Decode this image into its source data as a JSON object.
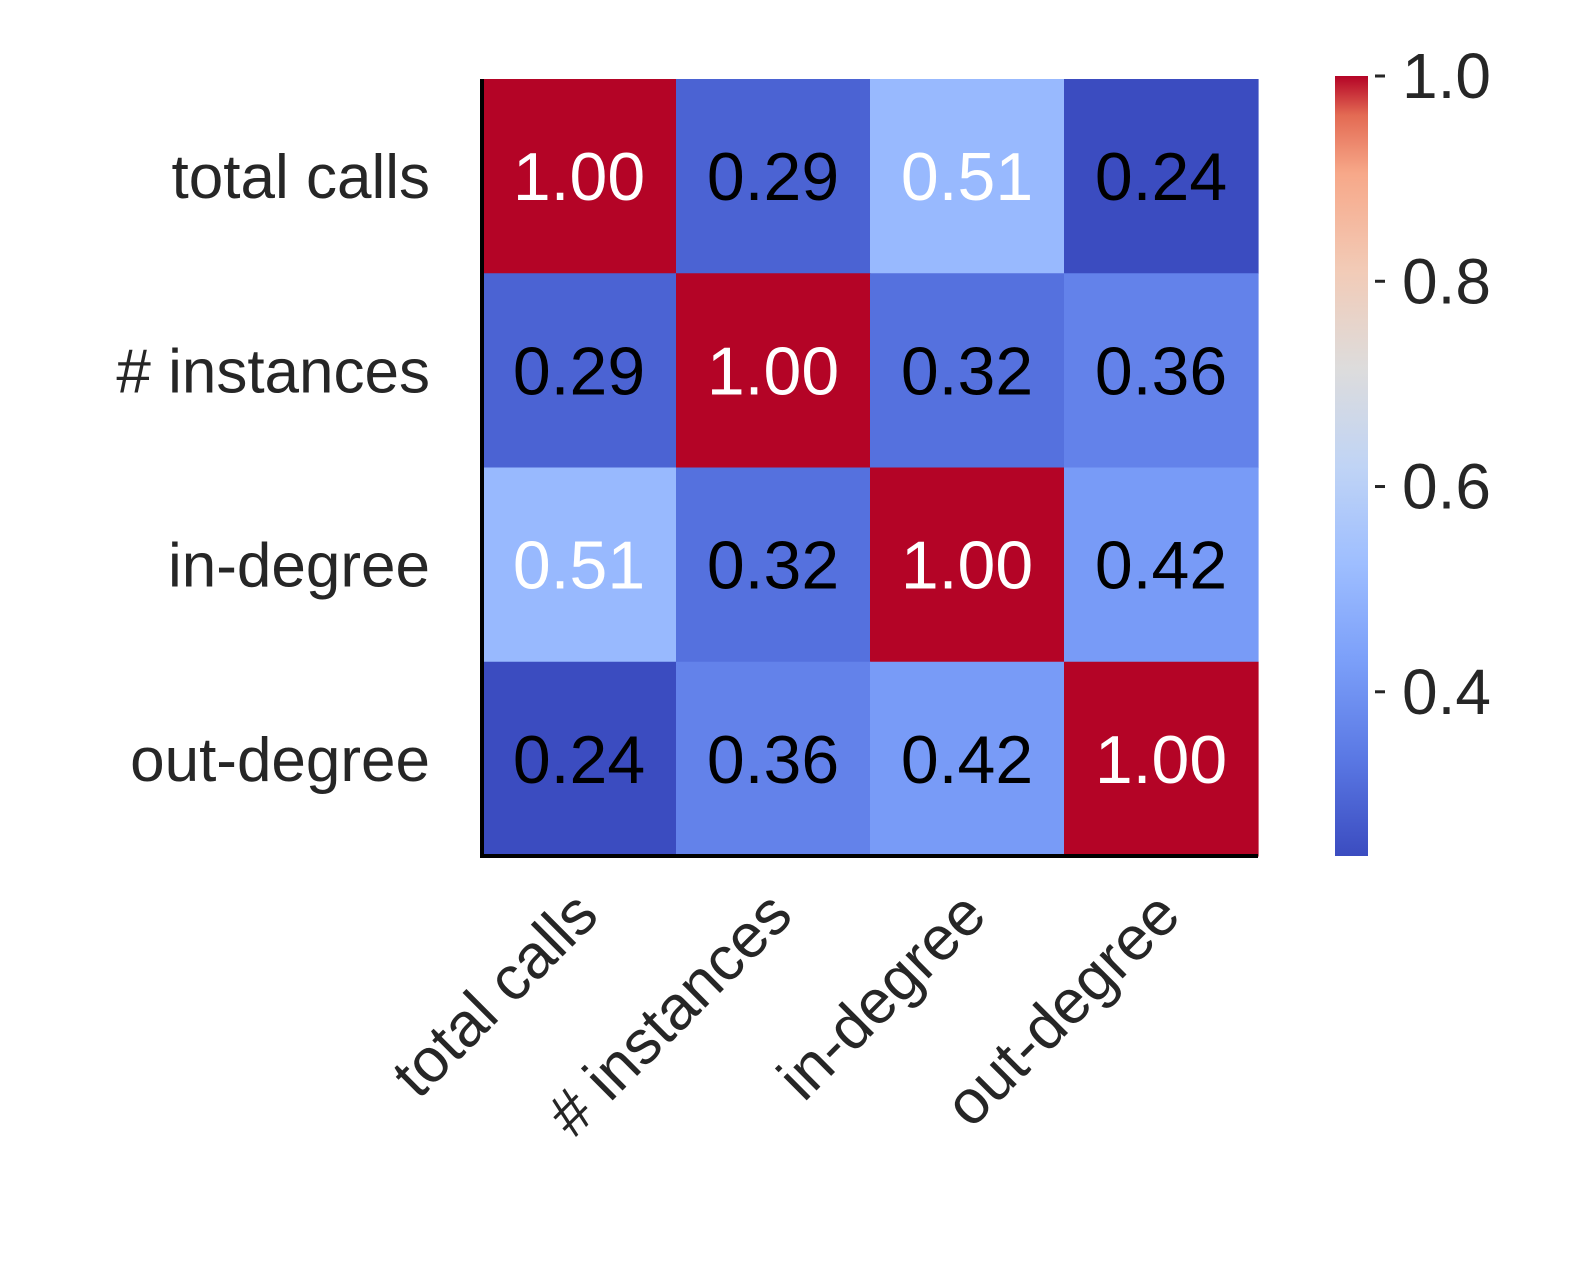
{
  "chart_data": {
    "type": "heatmap",
    "rows": [
      "total calls",
      "# instances",
      "in-degree",
      "out-degree"
    ],
    "columns": [
      "total calls",
      "# instances",
      "in-degree",
      "out-degree"
    ],
    "values": [
      [
        1.0,
        0.29,
        0.51,
        0.24
      ],
      [
        0.29,
        1.0,
        0.32,
        0.36
      ],
      [
        0.51,
        0.32,
        1.0,
        0.42
      ],
      [
        0.24,
        0.36,
        0.42,
        1.0
      ]
    ],
    "value_format": "0.00",
    "colormap": "coolwarm",
    "colorbar": {
      "range": [
        0.24,
        1.0
      ],
      "ticks": [
        0.4,
        0.6,
        0.8,
        1.0
      ],
      "tick_labels": [
        "0.4",
        "0.6",
        "0.8",
        "1.0"
      ]
    },
    "annotation_colors": {
      "light": "#ffffff",
      "dark": "#000000"
    },
    "title": "",
    "xlabel": "",
    "ylabel": ""
  }
}
